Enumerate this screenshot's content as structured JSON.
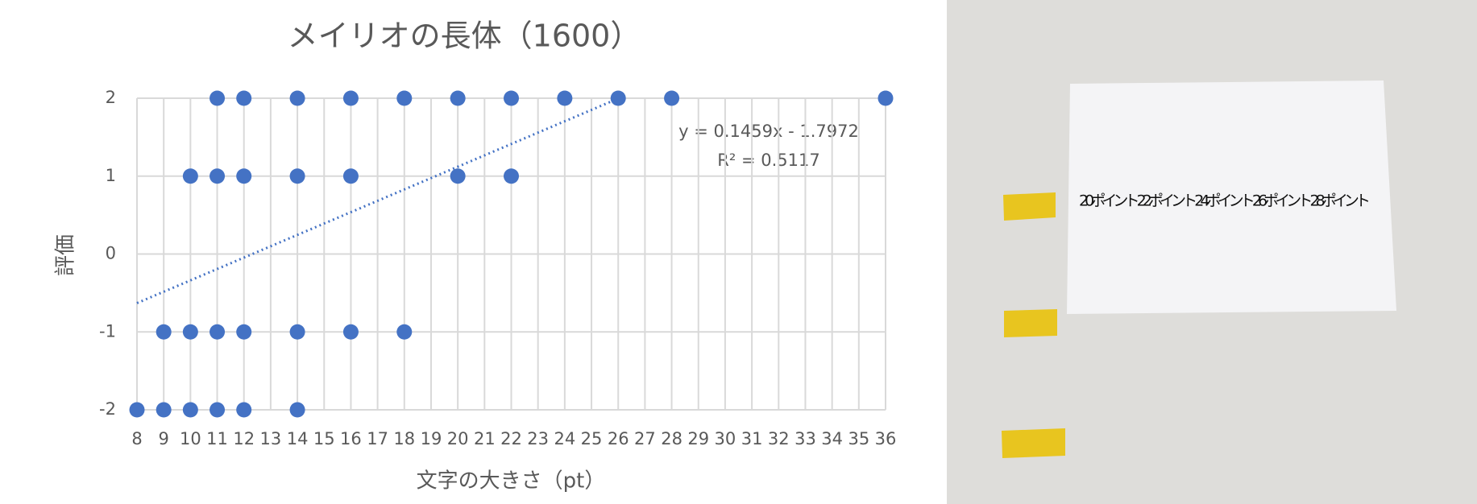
{
  "chart_data": {
    "type": "scatter",
    "title": "メイリオの長体（1600）",
    "x_label": "文字の大きさ（pt）",
    "y_label": "評価",
    "x": [
      11,
      12,
      14,
      16,
      18,
      20,
      22,
      24,
      26,
      28,
      36,
      10,
      11,
      12,
      14,
      16,
      20,
      22,
      9,
      10,
      11,
      12,
      14,
      16,
      18,
      8,
      9,
      10,
      11,
      12,
      14
    ],
    "values": [
      2,
      2,
      2,
      2,
      2,
      2,
      2,
      2,
      2,
      2,
      2,
      1,
      1,
      1,
      1,
      1,
      1,
      1,
      -1,
      -1,
      -1,
      -1,
      -1,
      -1,
      -1,
      -2,
      -2,
      -2,
      -2,
      -2,
      -2
    ],
    "color": "#4472c4",
    "xlim": [
      8,
      36
    ],
    "xticks": [
      8,
      9,
      10,
      11,
      12,
      13,
      14,
      15,
      16,
      17,
      18,
      19,
      20,
      21,
      22,
      23,
      24,
      25,
      26,
      27,
      28,
      29,
      30,
      31,
      32,
      33,
      34,
      35,
      36
    ],
    "ylim": [
      -2,
      2
    ],
    "yticks": [
      -2,
      -1,
      0,
      1,
      2
    ],
    "grid": true,
    "trendline": {
      "slope": 0.1459,
      "intercept": -1.7972,
      "x_range": [
        8,
        26
      ],
      "color": "#4472c4",
      "label": "y = 0.1459x - 1.7972",
      "r2_label": "R² = 0.5117"
    }
  },
  "photo": {
    "text": "20ポイント 22ポイント 24ポイント 26ポイント 28ポイント"
  }
}
